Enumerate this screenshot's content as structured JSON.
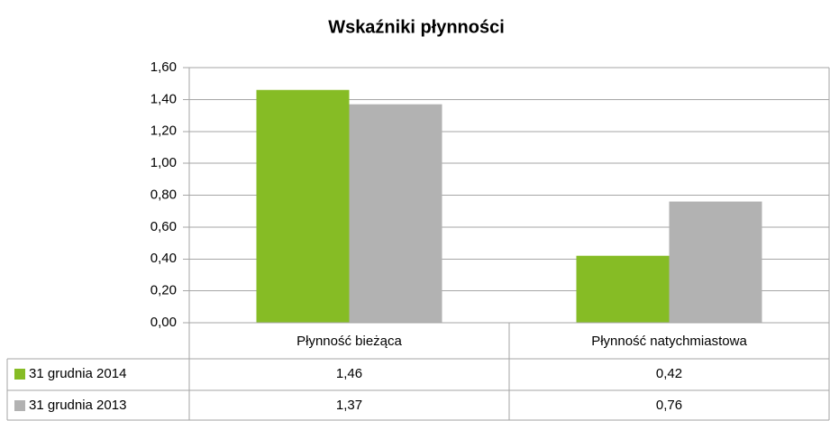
{
  "chart_data": {
    "type": "bar",
    "title": "Wskaźniki płynności",
    "categories": [
      "Płynność bieżąca",
      "Płynność natychmiastowa"
    ],
    "series": [
      {
        "name": "31 grudnia 2014",
        "color": "#86bc25",
        "values": [
          1.46,
          0.42
        ],
        "value_labels": [
          "1,46",
          "0,42"
        ]
      },
      {
        "name": "31 grudnia 2013",
        "color": "#b2b2b2",
        "values": [
          1.37,
          0.76
        ],
        "value_labels": [
          "1,37",
          "0,76"
        ]
      }
    ],
    "ylim": [
      0,
      1.6
    ],
    "yticks": [
      {
        "value": 0,
        "label": "0,00"
      },
      {
        "value": 0.2,
        "label": "0,20"
      },
      {
        "value": 0.4,
        "label": "0,40"
      },
      {
        "value": 0.6,
        "label": "0,60"
      },
      {
        "value": 0.8,
        "label": "0,80"
      },
      {
        "value": 1.0,
        "label": "1,00"
      },
      {
        "value": 1.2,
        "label": "1,20"
      },
      {
        "value": 1.4,
        "label": "1,40"
      },
      {
        "value": 1.6,
        "label": "1,60"
      }
    ],
    "grid": true,
    "legend": "table"
  }
}
